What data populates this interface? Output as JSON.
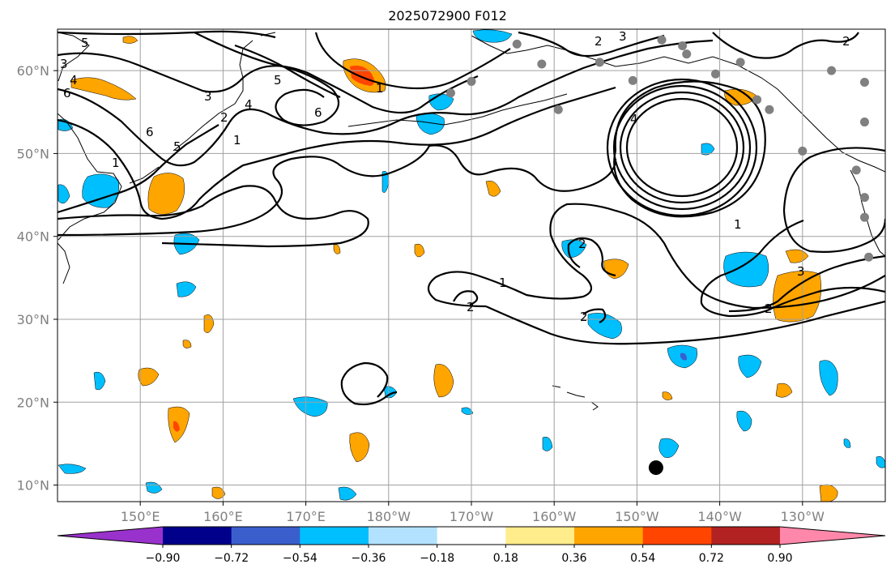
{
  "title": "2025072900 F012",
  "map": {
    "lon_range": [
      140,
      240
    ],
    "lat_range": [
      8,
      65
    ],
    "lon_ticks": [
      {
        "lon": 150,
        "label": "150°E"
      },
      {
        "lon": 160,
        "label": "160°E"
      },
      {
        "lon": 170,
        "label": "170°E"
      },
      {
        "lon": 180,
        "label": "180°W"
      },
      {
        "lon": 190,
        "label": "170°W"
      },
      {
        "lon": 200,
        "label": "160°W"
      },
      {
        "lon": 210,
        "label": "150°W"
      },
      {
        "lon": 220,
        "label": "140°W"
      },
      {
        "lon": 230,
        "label": "130°W"
      }
    ],
    "lat_ticks": [
      {
        "lat": 10,
        "label": "10°N"
      },
      {
        "lat": 20,
        "label": "20°N"
      },
      {
        "lat": 30,
        "label": "30°N"
      },
      {
        "lat": 40,
        "label": "40°N"
      },
      {
        "lat": 50,
        "label": "50°N"
      },
      {
        "lat": 60,
        "label": "60°N"
      }
    ],
    "grid": true,
    "contour_labels": [
      "5",
      "3",
      "4",
      "6",
      "1",
      "2",
      "3",
      "4",
      "5",
      "6",
      "1",
      "2",
      "3",
      "4",
      "5",
      "6",
      "1",
      "2",
      "2",
      "1",
      "2",
      "2",
      "3",
      "2",
      "1"
    ],
    "tc_marker": {
      "name": "storm-center",
      "lon": 212.3,
      "lat": 12.1
    },
    "station_dots": [
      {
        "lon": 195.5,
        "lat": 63.2
      },
      {
        "lon": 198.5,
        "lat": 60.8
      },
      {
        "lon": 200.5,
        "lat": 55.3
      },
      {
        "lon": 209.5,
        "lat": 58.8
      },
      {
        "lon": 213.0,
        "lat": 63.7
      },
      {
        "lon": 215.5,
        "lat": 63.0
      },
      {
        "lon": 187.5,
        "lat": 57.3
      },
      {
        "lon": 190.0,
        "lat": 58.7
      },
      {
        "lon": 219.5,
        "lat": 59.6
      },
      {
        "lon": 222.5,
        "lat": 61.0
      },
      {
        "lon": 226.0,
        "lat": 55.3
      },
      {
        "lon": 233.5,
        "lat": 60.0
      },
      {
        "lon": 237.5,
        "lat": 58.6
      },
      {
        "lon": 237.5,
        "lat": 53.8
      },
      {
        "lon": 230.0,
        "lat": 50.3
      },
      {
        "lon": 236.5,
        "lat": 48.0
      },
      {
        "lon": 237.5,
        "lat": 44.7
      },
      {
        "lon": 237.5,
        "lat": 42.3
      },
      {
        "lon": 238.0,
        "lat": 37.5
      },
      {
        "lon": 224.5,
        "lat": 56.5
      },
      {
        "lon": 205.5,
        "lat": 61.0
      },
      {
        "lon": 216.0,
        "lat": 62.0
      }
    ],
    "shading_colors": {
      "neg_090": "#9932cc",
      "neg_072": "#00008b",
      "neg_054": "#3a5fcd",
      "neg_036": "#00bfff",
      "neg_018": "#b2e2ff",
      "zero": "#ffffff",
      "pos_018": "#ffec8b",
      "pos_036": "#ffa500",
      "pos_054": "#ff4500",
      "pos_072": "#b22222",
      "pos_090": "#ff88aa"
    }
  },
  "colorbar": {
    "colors": [
      "#9932cc",
      "#00008b",
      "#3a5fcd",
      "#00bfff",
      "#b2e2ff",
      "#ffffff",
      "#ffec8b",
      "#ffa500",
      "#ff4500",
      "#b22222",
      "#ff88aa"
    ],
    "labels": [
      "−0.90",
      "−0.72",
      "−0.54",
      "−0.36",
      "−0.18",
      "0.18",
      "0.36",
      "0.54",
      "0.72",
      "0.90"
    ]
  }
}
